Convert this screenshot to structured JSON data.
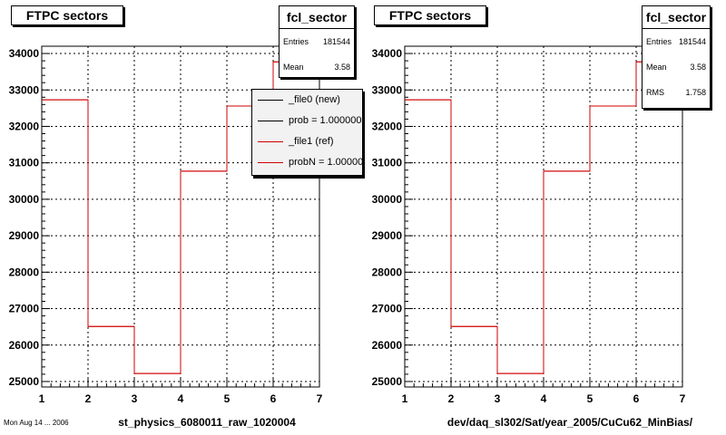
{
  "pads": [
    {
      "title": "FTPC sectors",
      "stats": {
        "name": "fcl_sector",
        "rows": [
          {
            "label": "Entries",
            "value": "181544"
          },
          {
            "label": "Mean",
            "value": "3.58"
          }
        ]
      },
      "legend": [
        {
          "label": "_file0 (new)",
          "color": "#000000"
        },
        {
          "label": "prob = 1.000000",
          "color": "#000000"
        },
        {
          "label": "_file1 (ref)",
          "color": "#d00000"
        },
        {
          "label": "probN = 1.000000",
          "color": "#d00000"
        }
      ],
      "xlabel": "st_physics_6080011_raw_1020004"
    },
    {
      "title": "FTPC sectors",
      "stats": {
        "name": "fcl_sector",
        "rows": [
          {
            "label": "Entries",
            "value": "181544"
          },
          {
            "label": "Mean",
            "value": "3.58"
          },
          {
            "label": "RMS",
            "value": "1.758"
          }
        ]
      },
      "xlabel": "dev/daq_sl302/Sat/year_2005/CuCu62_MinBias/"
    }
  ],
  "footer": "Mon Aug 14 ... 2006",
  "chart_data": [
    {
      "type": "line",
      "step": true,
      "title": "FTPC sectors",
      "xlabel": "st_physics_6080011_raw_1020004",
      "ylabel": "",
      "x_edges": [
        1,
        2,
        3,
        4,
        5,
        6,
        7
      ],
      "series": [
        {
          "name": "_file1 (ref)",
          "color": "#d00000",
          "values": [
            32730,
            26510,
            25220,
            30770,
            32560,
            33770
          ]
        }
      ],
      "xlim": [
        1,
        7
      ],
      "ylim": [
        24850,
        34200
      ],
      "xticks": [
        1,
        2,
        3,
        4,
        5,
        6,
        7
      ],
      "yticks": [
        25000,
        26000,
        27000,
        28000,
        29000,
        30000,
        31000,
        32000,
        33000,
        34000
      ],
      "grid": true,
      "legend_position": "top-right"
    },
    {
      "type": "line",
      "step": true,
      "title": "FTPC sectors",
      "xlabel": "dev/daq_sl302/Sat/year_2005/CuCu62_MinBias/",
      "ylabel": "",
      "x_edges": [
        1,
        2,
        3,
        4,
        5,
        6,
        7
      ],
      "series": [
        {
          "color": "#d00000",
          "values": [
            32730,
            26510,
            25220,
            30770,
            32560,
            33770
          ]
        }
      ],
      "xlim": [
        1,
        7
      ],
      "ylim": [
        24850,
        34200
      ],
      "xticks": [
        1,
        2,
        3,
        4,
        5,
        6,
        7
      ],
      "yticks": [
        25000,
        26000,
        27000,
        28000,
        29000,
        30000,
        31000,
        32000,
        33000,
        34000
      ],
      "grid": true
    }
  ]
}
